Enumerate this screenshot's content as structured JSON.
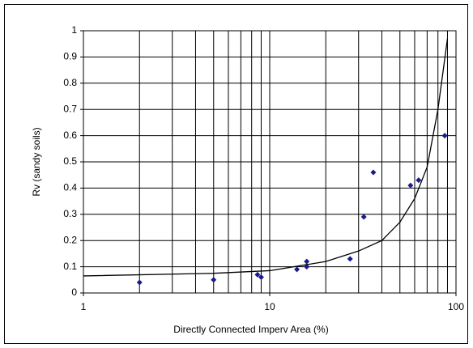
{
  "chart_data": {
    "type": "scatter",
    "x_label": "Directly Connected Imperv Area (%)",
    "y_label": "Rv (sandy soils)",
    "xscale": "log",
    "grid": true,
    "xlim": [
      1,
      100
    ],
    "xticks": [
      1,
      10,
      100
    ],
    "ylim": [
      0,
      1
    ],
    "yticks": [
      0,
      0.1,
      0.2,
      0.3,
      0.4,
      0.5,
      0.6,
      0.7,
      0.8,
      0.9,
      1
    ],
    "series": [
      {
        "style": "marker",
        "color": "#1a1a8c",
        "x": [
          2,
          5,
          8.6,
          9,
          14,
          15.8,
          15.8,
          27,
          32,
          36,
          57,
          63,
          87
        ],
        "values": [
          0.04,
          0.05,
          0.07,
          0.06,
          0.09,
          0.1,
          0.12,
          0.13,
          0.29,
          0.46,
          0.41,
          0.43,
          0.6
        ]
      },
      {
        "style": "line",
        "color": "#000000",
        "x": [
          1,
          5,
          10,
          20,
          30,
          40,
          50,
          60,
          70,
          80,
          90
        ],
        "values": [
          0.065,
          0.075,
          0.085,
          0.12,
          0.16,
          0.2,
          0.27,
          0.36,
          0.48,
          0.7,
          0.97
        ]
      }
    ]
  }
}
